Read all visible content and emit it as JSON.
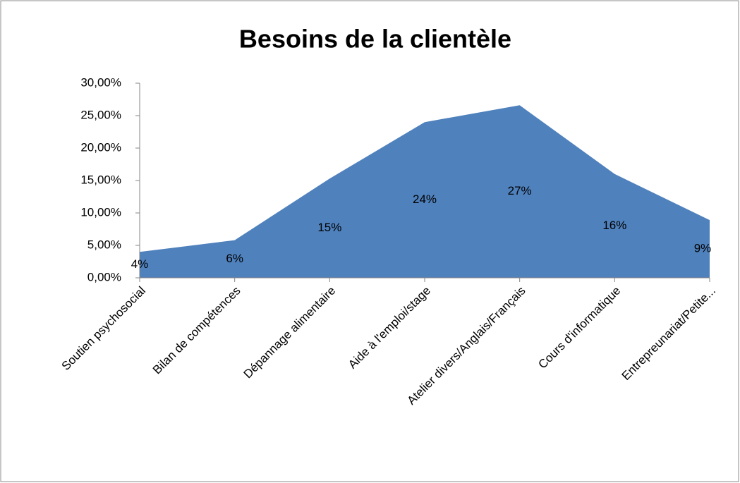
{
  "chart_data": {
    "type": "area",
    "title": "Besoins de la clientèle",
    "categories": [
      "Soutien psychosocial",
      "Bilan de compétences",
      "Dépannage alimentaire",
      "Aide à l'emploi/stage",
      "Atelier divers/Anglais/Français",
      "Cours d'informatique",
      "Entrepreunariat/Petite..."
    ],
    "values": [
      4.0,
      5.8,
      15.3,
      24.0,
      26.6,
      16.0,
      8.9
    ],
    "value_labels": [
      "4%",
      "6%",
      "15%",
      "24%",
      "27%",
      "16%",
      "9%"
    ],
    "color": "#4f81bd",
    "ylim": [
      0,
      30
    ],
    "yticks": [
      {
        "value": 0,
        "label": "0,00%"
      },
      {
        "value": 5,
        "label": "5,00%"
      },
      {
        "value": 10,
        "label": "10,00%"
      },
      {
        "value": 15,
        "label": "15,00%"
      },
      {
        "value": 20,
        "label": "20,00%"
      },
      {
        "value": 25,
        "label": "25,00%"
      },
      {
        "value": 30,
        "label": "30,00%"
      }
    ],
    "grid": false
  }
}
